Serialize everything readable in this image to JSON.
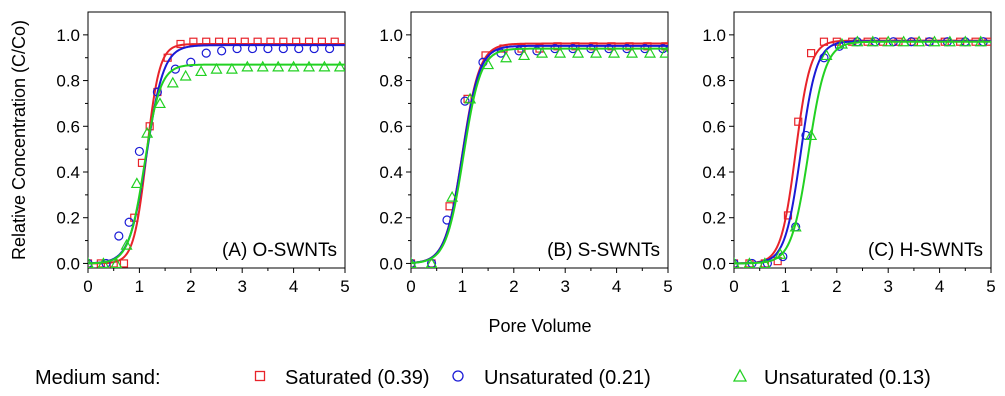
{
  "figure": {
    "ylabel": "Relative Concentration (C/Co)",
    "xlabel": "Pore Volume"
  },
  "legend": {
    "prefix": "Medium sand:",
    "entries": [
      {
        "label": "Saturated (0.39)",
        "color": "#e8232a",
        "marker": "square"
      },
      {
        "label": "Unsaturated (0.21)",
        "color": "#1a1ad6",
        "marker": "circle"
      },
      {
        "label": "Unsaturated (0.13)",
        "color": "#22d122",
        "marker": "triangle"
      }
    ]
  },
  "chart_data": [
    {
      "type": "scatter",
      "panel_label": "(A) O-SWNTs",
      "xlim": [
        0,
        5
      ],
      "ylim": [
        -0.02,
        1.1
      ],
      "xticks": [
        0,
        1,
        2,
        3,
        4,
        5
      ],
      "yticks": [
        "0.0",
        "0.2",
        "0.4",
        "0.6",
        "0.8",
        "1.0"
      ],
      "series": [
        {
          "color": "#e8232a",
          "marker": "square",
          "x": [
            0,
            0.25,
            0.5,
            0.7,
            0.9,
            1.05,
            1.2,
            1.35,
            1.55,
            1.8,
            2.05,
            2.3,
            2.55,
            2.8,
            3.05,
            3.3,
            3.55,
            3.8,
            4.05,
            4.3,
            4.55,
            4.8
          ],
          "y": [
            0.0,
            0.0,
            0.0,
            0.0,
            0.2,
            0.44,
            0.6,
            0.75,
            0.9,
            0.96,
            0.97,
            0.97,
            0.97,
            0.97,
            0.97,
            0.97,
            0.97,
            0.97,
            0.97,
            0.97,
            0.97,
            0.97
          ],
          "fit": {
            "plateau": 0.96,
            "mid": 1.14,
            "k": 8
          }
        },
        {
          "color": "#1a1ad6",
          "marker": "circle",
          "x": [
            0,
            0.35,
            0.6,
            0.8,
            1.0,
            1.35,
            1.7,
            2.0,
            2.3,
            2.6,
            2.9,
            3.2,
            3.5,
            3.8,
            4.1,
            4.4,
            4.7
          ],
          "y": [
            0.0,
            0.0,
            0.12,
            0.18,
            0.49,
            0.75,
            0.85,
            0.88,
            0.92,
            0.93,
            0.94,
            0.94,
            0.94,
            0.94,
            0.94,
            0.94,
            0.94
          ],
          "fit": {
            "plateau": 0.955,
            "mid": 1.14,
            "k": 6
          }
        },
        {
          "color": "#22d122",
          "marker": "triangle",
          "x": [
            0,
            0.3,
            0.55,
            0.75,
            0.95,
            1.15,
            1.4,
            1.65,
            1.9,
            2.2,
            2.5,
            2.8,
            3.1,
            3.4,
            3.7,
            4.0,
            4.3,
            4.6,
            4.9
          ],
          "y": [
            0.0,
            0.0,
            0.0,
            0.08,
            0.35,
            0.57,
            0.7,
            0.79,
            0.82,
            0.84,
            0.85,
            0.85,
            0.86,
            0.86,
            0.86,
            0.86,
            0.86,
            0.86,
            0.86
          ],
          "fit": {
            "plateau": 0.87,
            "mid": 1.1,
            "k": 6.5
          }
        }
      ]
    },
    {
      "type": "scatter",
      "panel_label": "(B) S-SWNTs",
      "xlim": [
        0,
        5
      ],
      "ylim": [
        -0.02,
        1.1
      ],
      "xticks": [
        0,
        1,
        2,
        3,
        4,
        5
      ],
      "yticks": [
        "0.0",
        "0.2",
        "0.4",
        "0.6",
        "0.8",
        "1.0"
      ],
      "series": [
        {
          "color": "#e8232a",
          "marker": "square",
          "x": [
            0,
            0.4,
            0.75,
            1.1,
            1.45,
            1.8,
            2.15,
            2.5,
            2.85,
            3.2,
            3.55,
            3.9,
            4.25,
            4.6,
            4.95
          ],
          "y": [
            0.0,
            0.0,
            0.25,
            0.72,
            0.91,
            0.94,
            0.94,
            0.94,
            0.95,
            0.95,
            0.95,
            0.95,
            0.95,
            0.95,
            0.95
          ],
          "fit": {
            "plateau": 0.962,
            "mid": 1.0,
            "k": 6
          }
        },
        {
          "color": "#1a1ad6",
          "marker": "circle",
          "x": [
            0,
            0.4,
            0.7,
            1.05,
            1.4,
            1.75,
            2.1,
            2.45,
            2.8,
            3.15,
            3.5,
            3.85,
            4.2,
            4.55,
            4.9
          ],
          "y": [
            0.0,
            0.0,
            0.19,
            0.71,
            0.88,
            0.92,
            0.93,
            0.93,
            0.94,
            0.94,
            0.94,
            0.94,
            0.94,
            0.94,
            0.94
          ],
          "fit": {
            "plateau": 0.952,
            "mid": 1.0,
            "k": 6
          }
        },
        {
          "color": "#22d122",
          "marker": "triangle",
          "x": [
            0,
            0.4,
            0.8,
            1.15,
            1.5,
            1.85,
            2.2,
            2.55,
            2.9,
            3.25,
            3.6,
            3.95,
            4.3,
            4.65,
            4.95
          ],
          "y": [
            0.0,
            0.0,
            0.29,
            0.72,
            0.87,
            0.9,
            0.91,
            0.92,
            0.92,
            0.92,
            0.92,
            0.92,
            0.92,
            0.92,
            0.92
          ],
          "fit": {
            "plateau": 0.94,
            "mid": 1.02,
            "k": 6
          }
        }
      ]
    },
    {
      "type": "scatter",
      "panel_label": "(C) H-SWNTs",
      "xlim": [
        0,
        5
      ],
      "ylim": [
        -0.02,
        1.1
      ],
      "xticks": [
        0,
        1,
        2,
        3,
        4,
        5
      ],
      "yticks": [
        "0.0",
        "0.2",
        "0.4",
        "0.6",
        "0.8",
        "1.0"
      ],
      "series": [
        {
          "color": "#e8232a",
          "marker": "square",
          "x": [
            0,
            0.3,
            0.6,
            0.85,
            1.05,
            1.25,
            1.5,
            1.75,
            2.0,
            2.3,
            2.6,
            2.9,
            3.2,
            3.5,
            3.8,
            4.1,
            4.4,
            4.7,
            4.95
          ],
          "y": [
            0.0,
            0.0,
            0.0,
            0.01,
            0.21,
            0.62,
            0.92,
            0.97,
            0.97,
            0.97,
            0.97,
            0.97,
            0.97,
            0.97,
            0.97,
            0.97,
            0.97,
            0.97,
            0.97
          ],
          "fit": {
            "plateau": 0.975,
            "mid": 1.2,
            "k": 7
          }
        },
        {
          "color": "#1a1ad6",
          "marker": "circle",
          "x": [
            0,
            0.35,
            0.65,
            0.95,
            1.2,
            1.4,
            1.75,
            2.05,
            2.4,
            2.75,
            3.1,
            3.45,
            3.8,
            4.15,
            4.5,
            4.85
          ],
          "y": [
            0.0,
            0.0,
            0.0,
            0.03,
            0.16,
            0.56,
            0.9,
            0.95,
            0.97,
            0.97,
            0.97,
            0.97,
            0.97,
            0.97,
            0.97,
            0.97
          ],
          "fit": {
            "plateau": 0.972,
            "mid": 1.3,
            "k": 6.5
          }
        },
        {
          "color": "#22d122",
          "marker": "triangle",
          "x": [
            0,
            0.3,
            0.6,
            0.9,
            1.2,
            1.5,
            1.8,
            2.1,
            2.4,
            2.7,
            3.0,
            3.3,
            3.6,
            3.9,
            4.2,
            4.5,
            4.8
          ],
          "y": [
            0.0,
            0.0,
            0.0,
            0.04,
            0.16,
            0.56,
            0.91,
            0.96,
            0.97,
            0.97,
            0.97,
            0.97,
            0.97,
            0.97,
            0.97,
            0.97,
            0.97
          ],
          "fit": {
            "plateau": 0.97,
            "mid": 1.45,
            "k": 6
          }
        }
      ]
    }
  ]
}
